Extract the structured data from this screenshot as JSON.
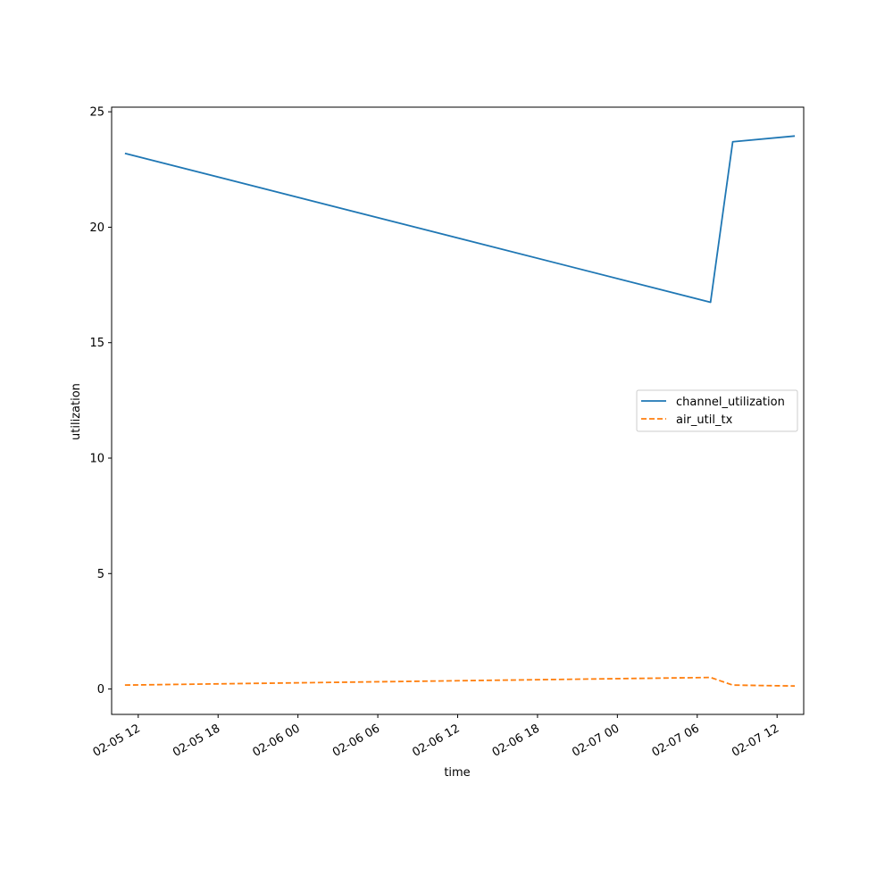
{
  "chart_data": {
    "type": "line",
    "title": "",
    "xlabel": "time",
    "ylabel": "utilization",
    "x": [
      "2024-02-05 11:00",
      "2024-02-07 07:00",
      "2024-02-07 08:40",
      "2024-02-07 13:20"
    ],
    "series": [
      {
        "name": "channel_utilization",
        "color": "#1f77b4",
        "linestyle": "solid",
        "values": [
          23.2,
          16.75,
          23.7,
          23.95
        ]
      },
      {
        "name": "air_util_tx",
        "color": "#ff7f0e",
        "linestyle": "dashed",
        "values": [
          0.17,
          0.5,
          0.17,
          0.13
        ]
      }
    ],
    "ylim": [
      -1.1,
      25.2
    ],
    "xlim": [
      "2024-02-05 10:00",
      "2024-02-07 14:00"
    ],
    "yticks": [
      0,
      5,
      10,
      15,
      20,
      25
    ],
    "xticks": [
      "2024-02-05 12:00",
      "2024-02-05 18:00",
      "2024-02-06 00:00",
      "2024-02-06 06:00",
      "2024-02-06 12:00",
      "2024-02-06 18:00",
      "2024-02-07 00:00",
      "2024-02-07 06:00",
      "2024-02-07 12:00"
    ],
    "xtick_labels": [
      "02-05 12",
      "02-05 18",
      "02-06 00",
      "02-06 06",
      "02-06 12",
      "02-06 18",
      "02-07 00",
      "02-07 06",
      "02-07 12"
    ],
    "grid": false,
    "legend": "center-right"
  }
}
